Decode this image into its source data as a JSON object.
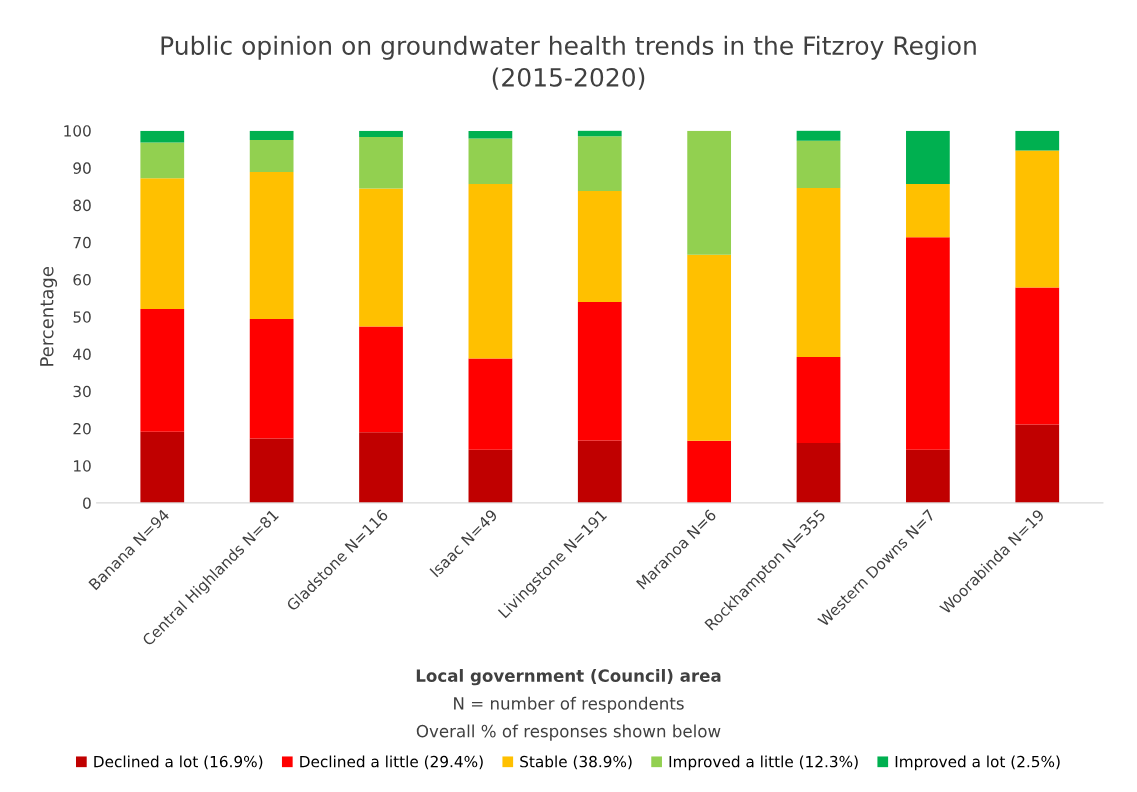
{
  "chart_data": {
    "type": "bar",
    "stacked": true,
    "title": "Public opinion on groundwater health trends in the Fitzroy Region\n(2015-2020)",
    "xlabel": "Local government (Council) area",
    "ylabel": "Percentage",
    "annotations": [
      "N = number of respondents",
      "Overall % of responses shown below"
    ],
    "categories": [
      "Banana N=94",
      "Central Highlands N=81",
      "Gladstone N=116",
      "Isaac N=49",
      "Livingstone N=191",
      "Maranoa N=6",
      "Rockhampton N=355",
      "Western Downs N=7",
      "Woorabinda N=19"
    ],
    "series": [
      {
        "name": "Declined a lot (16.9%)",
        "color": "#c00000",
        "values": [
          19.1,
          17.3,
          19.0,
          14.3,
          16.8,
          0,
          16.1,
          14.3,
          21.1
        ]
      },
      {
        "name": "Declined a little (29.4%)",
        "color": "#ff0000",
        "values": [
          33.0,
          32.1,
          28.4,
          24.5,
          37.2,
          16.7,
          23.1,
          57.1,
          36.8
        ]
      },
      {
        "name": "Stable (38.9%)",
        "color": "#ffc000",
        "values": [
          35.1,
          39.5,
          37.1,
          46.9,
          29.8,
          50.0,
          45.4,
          14.3,
          36.8
        ]
      },
      {
        "name": "Improved a little (12.3%)",
        "color": "#92d050",
        "values": [
          9.6,
          8.6,
          13.8,
          12.2,
          14.7,
          33.3,
          12.7,
          0,
          0
        ]
      },
      {
        "name": "Improved a lot (2.5%)",
        "color": "#00b050",
        "values": [
          3.2,
          2.5,
          1.7,
          2.0,
          1.6,
          0,
          2.8,
          14.3,
          5.3
        ]
      }
    ],
    "ylim": [
      0,
      100
    ],
    "yticks": [
      0,
      10,
      20,
      30,
      40,
      50,
      60,
      70,
      80,
      90,
      100
    ],
    "grid": false,
    "legend": "bottom"
  }
}
